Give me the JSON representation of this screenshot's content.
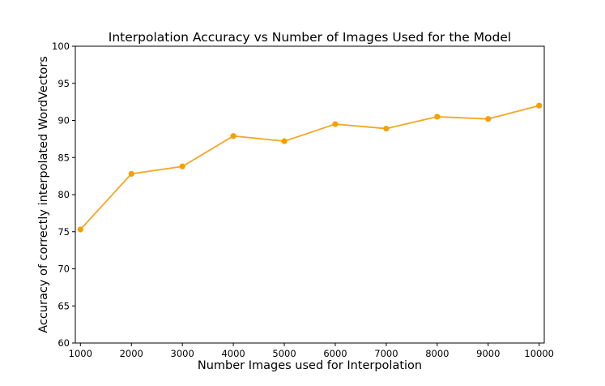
{
  "chart_data": {
    "type": "line",
    "title": "Interpolation Accuracy vs Number of Images Used for the Model",
    "xlabel": "Number Images used for Interpolation",
    "ylabel": "Accuracy of correctly interpolated WordVectors",
    "x": [
      1000,
      2000,
      3000,
      4000,
      5000,
      6000,
      7000,
      8000,
      9000,
      10000
    ],
    "series": [
      {
        "values": [
          75.3,
          82.8,
          83.8,
          87.9,
          87.2,
          89.5,
          88.9,
          90.5,
          90.2,
          92.0
        ],
        "color": "#f5a623"
      }
    ],
    "xticks": [
      1000,
      2000,
      3000,
      4000,
      5000,
      6000,
      7000,
      8000,
      9000,
      10000
    ],
    "yticks": [
      60,
      65,
      70,
      75,
      80,
      85,
      90,
      95,
      100
    ],
    "xlim": [
      900,
      10100
    ],
    "ylim": [
      60,
      100
    ],
    "grid": false,
    "marker_color": "#f5a000"
  }
}
